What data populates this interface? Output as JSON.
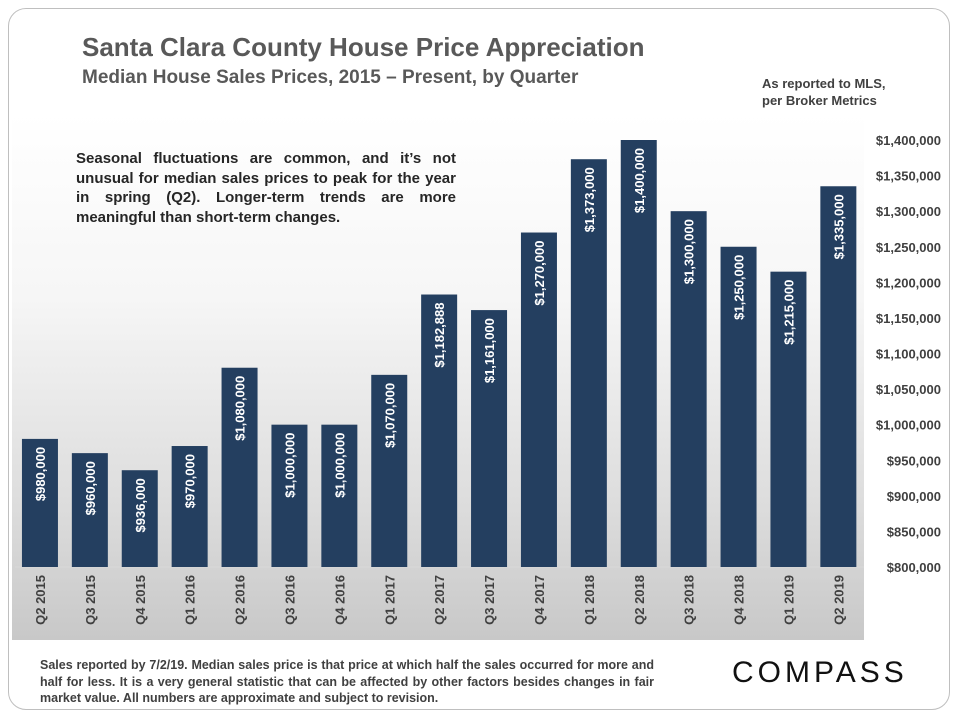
{
  "header": {
    "title": "Santa Clara County House Price Appreciation",
    "subtitle": "Median House Sales Prices, 2015 – Present, by Quarter",
    "source_line1": "As reported to MLS,",
    "source_line2": "per Broker Metrics"
  },
  "note": "Seasonal fluctuations are common, and it’s not unusual for median sales prices to peak for the year in spring (Q2). Longer-term trends are more meaningful than short-term changes.",
  "footer": {
    "text": "Sales reported by 7/2/19. Median sales price is that price at which half the sales occurred for more and half for less. It is a very general statistic that can be affected by other factors besides changes in fair market value. All numbers are approximate and subject to revision.",
    "brand": "COMPASS"
  },
  "colors": {
    "bar": "#243f60",
    "bar_label": "#ffffff",
    "axis_text": "#404040"
  },
  "chart_data": {
    "type": "bar",
    "title": "Santa Clara County House Price Appreciation",
    "subtitle": "Median House Sales Prices, 2015 – Present, by Quarter",
    "xlabel": "",
    "ylabel": "",
    "ylim": [
      800000,
      1400000
    ],
    "ytick_step": 50000,
    "y_axis_side": "right",
    "categories": [
      "Q2 2015",
      "Q3 2015",
      "Q4 2015",
      "Q1 2016",
      "Q2 2016",
      "Q3 2016",
      "Q4 2016",
      "Q1 2017",
      "Q2 2017",
      "Q3 2017",
      "Q4 2017",
      "Q1 2018",
      "Q2 2018",
      "Q3 2018",
      "Q4 2018",
      "Q1 2019",
      "Q2 2019"
    ],
    "values": [
      980000,
      960000,
      936000,
      970000,
      1080000,
      1000000,
      1000000,
      1070000,
      1182888,
      1161000,
      1270000,
      1373000,
      1400000,
      1300000,
      1250000,
      1215000,
      1335000
    ],
    "value_labels": [
      "$980,000",
      "$960,000",
      "$936,000",
      "$970,000",
      "$1,080,000",
      "$1,000,000",
      "$1,000,000",
      "$1,070,000",
      "$1,182,888",
      "$1,161,000",
      "$1,270,000",
      "$1,373,000",
      "$1,400,000",
      "$1,300,000",
      "$1,250,000",
      "$1,215,000",
      "$1,335,000"
    ],
    "ytick_labels": [
      "$800,000",
      "$850,000",
      "$900,000",
      "$950,000",
      "$1,000,000",
      "$1,050,000",
      "$1,100,000",
      "$1,150,000",
      "$1,200,000",
      "$1,250,000",
      "$1,300,000",
      "$1,350,000",
      "$1,400,000"
    ]
  }
}
